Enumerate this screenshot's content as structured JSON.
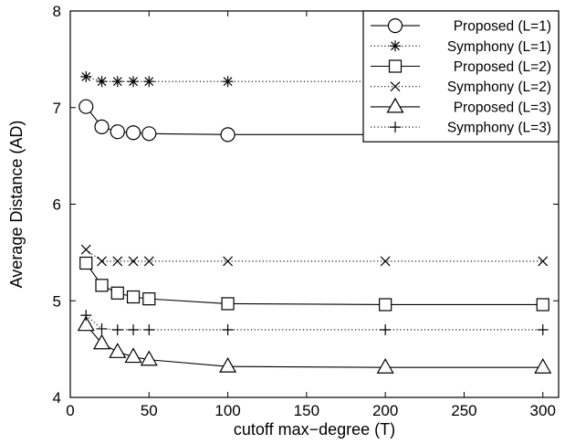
{
  "chart_data": {
    "type": "line",
    "title": "",
    "xlabel": "cutoff max−degree (T)",
    "ylabel": "Average Distance (AD)",
    "xlim": [
      0,
      310
    ],
    "ylim": [
      4,
      8
    ],
    "xticks": [
      0,
      50,
      100,
      150,
      200,
      250,
      300
    ],
    "yticks": [
      4,
      5,
      6,
      7,
      8
    ],
    "grid": false,
    "legend_position": "top-right",
    "x": [
      10,
      20,
      30,
      40,
      50,
      100,
      200,
      300
    ],
    "series": [
      {
        "name": "Proposed (L=1)",
        "values": [
          7.01,
          6.8,
          6.75,
          6.74,
          6.73,
          6.72,
          6.72,
          6.72
        ],
        "marker": "circle",
        "line": "solid",
        "color": "#000000"
      },
      {
        "name": "Symphony (L=1)",
        "values": [
          7.32,
          7.27,
          7.27,
          7.27,
          7.27,
          7.27,
          7.27,
          7.27
        ],
        "marker": "asterisk",
        "line": "dotted",
        "color": "#000000"
      },
      {
        "name": "Proposed (L=2)",
        "values": [
          5.39,
          5.16,
          5.08,
          5.04,
          5.02,
          4.97,
          4.96,
          4.96
        ],
        "marker": "square",
        "line": "solid",
        "color": "#000000"
      },
      {
        "name": "Symphony (L=2)",
        "values": [
          5.53,
          5.41,
          5.41,
          5.41,
          5.41,
          5.41,
          5.41,
          5.41
        ],
        "marker": "x",
        "line": "dotted",
        "color": "#000000"
      },
      {
        "name": "Proposed (L=3)",
        "values": [
          4.75,
          4.56,
          4.47,
          4.42,
          4.39,
          4.32,
          4.31,
          4.31
        ],
        "marker": "triangle",
        "line": "solid",
        "color": "#000000"
      },
      {
        "name": "Symphony (L=3)",
        "values": [
          4.85,
          4.71,
          4.7,
          4.7,
          4.7,
          4.7,
          4.7,
          4.7
        ],
        "marker": "plus",
        "line": "dotted",
        "color": "#000000"
      }
    ]
  }
}
